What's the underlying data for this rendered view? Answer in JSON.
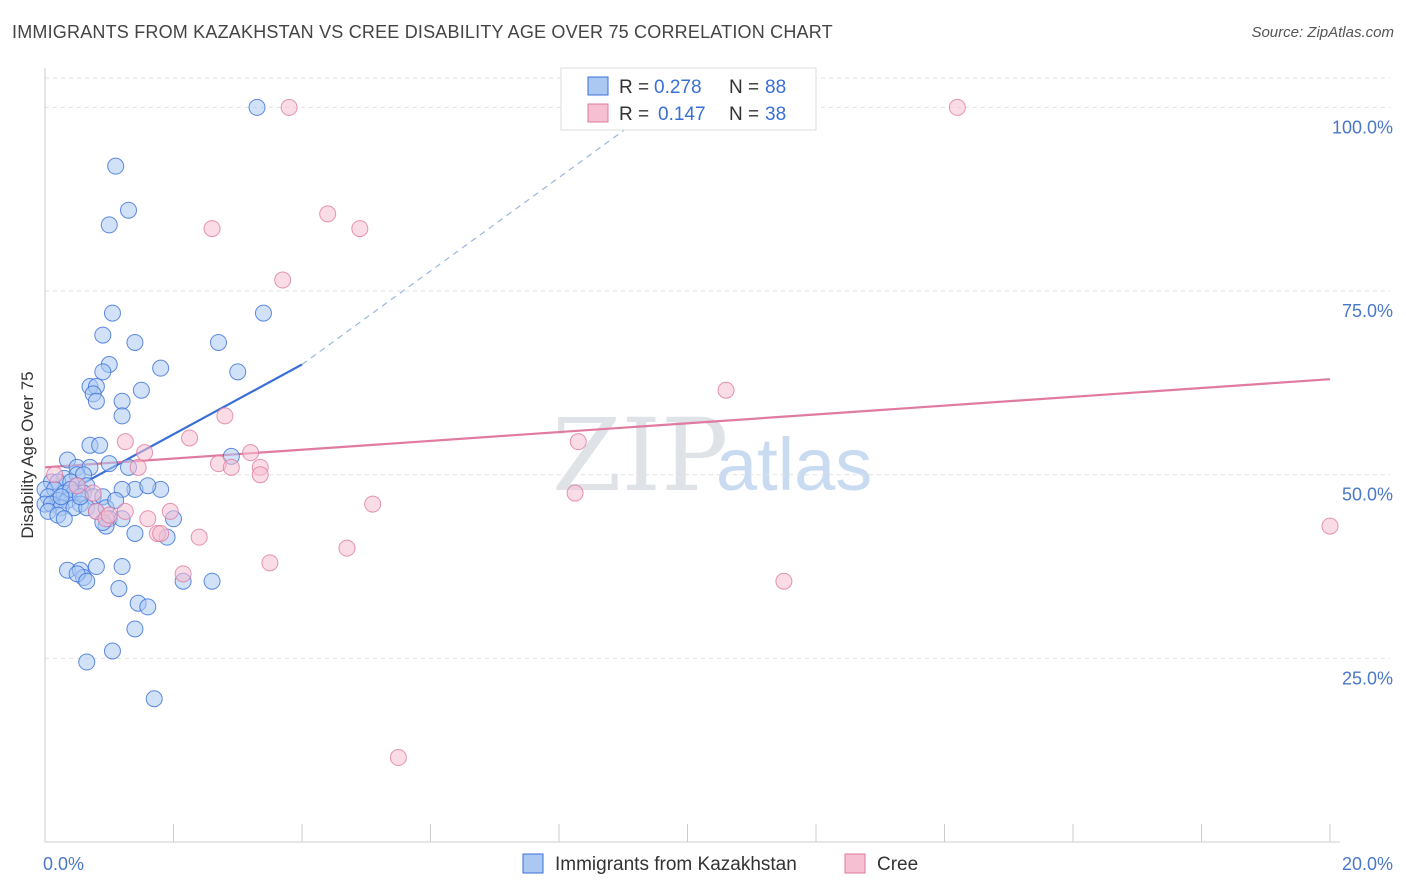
{
  "header": {
    "title": "IMMIGRANTS FROM KAZAKHSTAN VS CREE DISABILITY AGE OVER 75 CORRELATION CHART",
    "source": "Source: ZipAtlas.com"
  },
  "watermark": {
    "zip": "ZIP",
    "atlas": "atlas"
  },
  "legend_top": {
    "r_label": "R =",
    "n_label": "N =",
    "rows": [
      {
        "r": "0.278",
        "n": "88"
      },
      {
        "r": "0.147",
        "n": "38"
      }
    ]
  },
  "chart_data": {
    "type": "scatter",
    "title": "IMMIGRANTS FROM KAZAKHSTAN VS CREE DISABILITY AGE OVER 75 CORRELATION CHART",
    "xlabel": "",
    "ylabel": "Disability Age Over 75",
    "xlim": [
      0,
      20
    ],
    "ylim": [
      0,
      104
    ],
    "x_tick_labels": [
      "0.0%",
      "20.0%"
    ],
    "y_ticks": [
      25,
      50,
      75,
      100
    ],
    "y_tick_labels": [
      "25.0%",
      "50.0%",
      "75.0%",
      "100.0%"
    ],
    "grid": true,
    "colors": {
      "series1": "#3a6fd8",
      "series1_fill": "#aac8f2",
      "series2": "#e07aa0",
      "series2_fill": "#f6bfd2"
    },
    "series": [
      {
        "name": "Immigrants from Kazakhstan",
        "R": 0.278,
        "N": 88,
        "trend": {
          "x0": 0.0,
          "y0": 46.0,
          "x1": 4.0,
          "y1": 65.0,
          "dash_to_x": 9.5,
          "dash_to_y": 100.0
        },
        "points": [
          [
            3.3,
            100
          ],
          [
            1.1,
            92
          ],
          [
            1.3,
            86
          ],
          [
            1.0,
            84
          ],
          [
            1.05,
            72
          ],
          [
            3.4,
            72
          ],
          [
            0.9,
            69
          ],
          [
            1.4,
            68
          ],
          [
            2.7,
            68
          ],
          [
            1.0,
            65
          ],
          [
            1.8,
            64.5
          ],
          [
            0.9,
            64
          ],
          [
            3.0,
            64
          ],
          [
            0.7,
            62
          ],
          [
            0.8,
            62
          ],
          [
            1.5,
            61.5
          ],
          [
            0.75,
            61
          ],
          [
            0.8,
            60
          ],
          [
            1.2,
            60
          ],
          [
            1.2,
            58
          ],
          [
            0.7,
            54
          ],
          [
            0.85,
            54
          ],
          [
            0.35,
            52
          ],
          [
            2.9,
            52.5
          ],
          [
            0.5,
            51
          ],
          [
            0.7,
            51
          ],
          [
            1.0,
            51.5
          ],
          [
            1.3,
            51
          ],
          [
            0.3,
            49.5
          ],
          [
            0.5,
            50
          ],
          [
            0.6,
            50
          ],
          [
            0.1,
            49
          ],
          [
            0.2,
            49
          ],
          [
            0.4,
            49
          ],
          [
            0.5,
            48.5
          ],
          [
            0.65,
            48.5
          ],
          [
            1.4,
            48
          ],
          [
            1.8,
            48
          ],
          [
            1.2,
            48
          ],
          [
            0.0,
            48
          ],
          [
            0.15,
            48
          ],
          [
            0.3,
            47.5
          ],
          [
            0.45,
            47.5
          ],
          [
            0.6,
            47.5
          ],
          [
            0.75,
            47
          ],
          [
            0.9,
            47
          ],
          [
            0.05,
            47
          ],
          [
            0.2,
            46.5
          ],
          [
            0.35,
            46.5
          ],
          [
            0.55,
            46
          ],
          [
            0.0,
            46
          ],
          [
            0.1,
            46
          ],
          [
            0.25,
            45.5
          ],
          [
            0.45,
            45.5
          ],
          [
            0.65,
            45.5
          ],
          [
            0.8,
            45
          ],
          [
            0.95,
            45.5
          ],
          [
            0.05,
            45
          ],
          [
            0.2,
            44.5
          ],
          [
            1.0,
            44
          ],
          [
            0.3,
            44
          ],
          [
            1.2,
            44
          ],
          [
            2.0,
            44
          ],
          [
            1.4,
            42
          ],
          [
            0.95,
            43
          ],
          [
            1.9,
            41.5
          ],
          [
            0.8,
            37.5
          ],
          [
            1.2,
            37.5
          ],
          [
            0.35,
            37
          ],
          [
            0.55,
            37
          ],
          [
            0.6,
            36
          ],
          [
            0.5,
            36.5
          ],
          [
            0.65,
            35.5
          ],
          [
            2.15,
            35.5
          ],
          [
            2.6,
            35.5
          ],
          [
            1.15,
            34.5
          ],
          [
            1.45,
            32.5
          ],
          [
            1.6,
            32
          ],
          [
            1.4,
            29
          ],
          [
            1.05,
            26
          ],
          [
            0.65,
            24.5
          ],
          [
            1.7,
            19.5
          ],
          [
            0.9,
            43.5
          ],
          [
            1.1,
            46.5
          ],
          [
            1.6,
            48.5
          ],
          [
            0.4,
            48
          ],
          [
            0.25,
            47
          ],
          [
            0.55,
            47
          ]
        ]
      },
      {
        "name": "Cree",
        "R": 0.147,
        "N": 38,
        "trend": {
          "x0": 0.0,
          "y0": 51.0,
          "x1": 20.0,
          "y1": 63.0
        },
        "points": [
          [
            3.8,
            100
          ],
          [
            14.2,
            100
          ],
          [
            4.4,
            85.5
          ],
          [
            2.6,
            83.5
          ],
          [
            4.9,
            83.5
          ],
          [
            3.7,
            76.5
          ],
          [
            10.6,
            61.5
          ],
          [
            2.8,
            58
          ],
          [
            8.3,
            54.5
          ],
          [
            1.25,
            54.5
          ],
          [
            2.25,
            55
          ],
          [
            1.55,
            53
          ],
          [
            3.2,
            53
          ],
          [
            2.7,
            51.5
          ],
          [
            2.9,
            51
          ],
          [
            3.35,
            51
          ],
          [
            3.35,
            50
          ],
          [
            1.45,
            51
          ],
          [
            0.15,
            50
          ],
          [
            0.5,
            48.5
          ],
          [
            0.75,
            47.5
          ],
          [
            5.1,
            46
          ],
          [
            1.25,
            45
          ],
          [
            0.8,
            45
          ],
          [
            1.95,
            45
          ],
          [
            1.6,
            44
          ],
          [
            0.95,
            44
          ],
          [
            1.75,
            42
          ],
          [
            2.4,
            41.5
          ],
          [
            1.0,
            44.5
          ],
          [
            4.7,
            40
          ],
          [
            8.25,
            47.5
          ],
          [
            20.0,
            43
          ],
          [
            3.5,
            38
          ],
          [
            2.15,
            36.5
          ],
          [
            11.5,
            35.5
          ],
          [
            5.5,
            11.5
          ],
          [
            1.8,
            42
          ]
        ]
      }
    ]
  },
  "legend_bottom": {
    "items": [
      "Immigrants from Kazakhstan",
      "Cree"
    ]
  }
}
